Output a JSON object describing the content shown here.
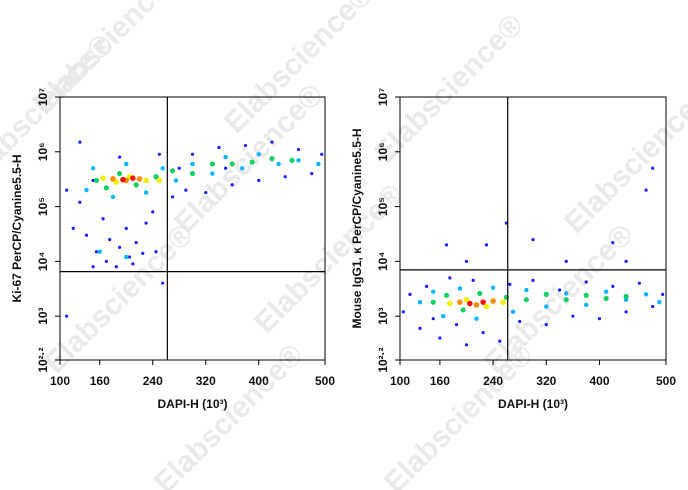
{
  "watermark": "Elabscience®",
  "chart_data": [
    {
      "type": "scatter",
      "xlabel": "DAPI-H  (10³)",
      "ylabel": "Ki-67 PerCP/Cyanine5.5-H",
      "xlim": [
        100,
        500
      ],
      "xticks": [
        100,
        160,
        240,
        320,
        400,
        500
      ],
      "ylim": [
        158.489,
        10000000.0
      ],
      "yscale": "log",
      "yticks": [
        {
          "value": 158.489,
          "label": "10²·²"
        },
        {
          "value": 1000,
          "label": "10³"
        },
        {
          "value": 10000,
          "label": "10⁴"
        },
        {
          "value": 100000,
          "label": "10⁵"
        },
        {
          "value": 1000000,
          "label": "10⁶"
        },
        {
          "value": 10000000,
          "label": "10⁷"
        }
      ],
      "gate": {
        "x": 262,
        "y": 6500
      },
      "series": [
        {
          "color": "#1a1aff",
          "x": [
            110,
            120,
            130,
            140,
            150,
            155,
            165,
            170,
            175,
            185,
            190,
            200,
            205,
            210,
            215,
            225,
            230,
            240,
            245,
            255,
            270,
            290,
            300,
            320,
            340,
            360,
            380,
            400,
            420,
            440,
            460,
            480,
            495,
            130,
            190,
            250,
            110,
            150,
            280,
            350
          ],
          "values": [
            200000.0,
            40000.0,
            120000.0,
            30000.0,
            8000.0,
            15000.0,
            60000.0,
            10000.0,
            25000.0,
            8000.0,
            18000.0,
            40000.0,
            12000.0,
            9000.0,
            22000.0,
            14000.0,
            50000.0,
            80000.0,
            15000.0,
            4000.0,
            150000.0,
            200000.0,
            900000.0,
            180000.0,
            1200000.0,
            250000.0,
            1300000.0,
            300000.0,
            1500000.0,
            350000.0,
            1100000.0,
            400000.0,
            900000.0,
            1500000.0,
            800000.0,
            900000.0,
            1000.0,
            300000.0,
            500000.0,
            500000.0
          ]
        },
        {
          "color": "#00b4ff",
          "x": [
            140,
            150,
            180,
            200,
            230,
            255,
            275,
            300,
            330,
            350,
            375,
            400,
            430,
            460,
            490,
            160,
            200
          ],
          "values": [
            200000.0,
            500000.0,
            150000.0,
            600000.0,
            180000.0,
            500000.0,
            300000.0,
            600000.0,
            400000.0,
            800000.0,
            500000.0,
            900000.0,
            600000.0,
            700000.0,
            600000.0,
            15000.0,
            12000.0
          ]
        },
        {
          "color": "#10d060",
          "x": [
            155,
            170,
            190,
            215,
            245,
            270,
            300,
            330,
            360,
            390,
            420,
            450
          ],
          "values": [
            300000.0,
            220000.0,
            400000.0,
            250000.0,
            350000.0,
            450000.0,
            400000.0,
            600000.0,
            600000.0,
            650000.0,
            750000.0,
            700000.0
          ]
        },
        {
          "color": "#f0f000",
          "x": [
            165,
            185,
            205,
            230,
            250
          ],
          "values": [
            330000.0,
            280000.0,
            350000.0,
            300000.0,
            300000.0
          ]
        },
        {
          "color": "#ff8c00",
          "x": [
            180,
            200,
            220
          ],
          "values": [
            320000.0,
            300000.0,
            320000.0
          ]
        },
        {
          "color": "#ff1010",
          "x": [
            195,
            210
          ],
          "values": [
            310000.0,
            330000.0
          ]
        }
      ]
    },
    {
      "type": "scatter",
      "xlabel": "DAPI-H  (10³)",
      "ylabel": "Mouse IgG1, κ PerCP/Cyanine5.5-H",
      "xlim": [
        100,
        500
      ],
      "xticks": [
        100,
        160,
        240,
        320,
        400,
        500
      ],
      "ylim": [
        158.489,
        10000000.0
      ],
      "yscale": "log",
      "yticks": [
        {
          "value": 158.489,
          "label": "10²·²"
        },
        {
          "value": 1000,
          "label": "10³"
        },
        {
          "value": 10000,
          "label": "10⁴"
        },
        {
          "value": 100000,
          "label": "10⁵"
        },
        {
          "value": 1000000,
          "label": "10⁶"
        },
        {
          "value": 10000000,
          "label": "10⁷"
        }
      ],
      "gate": {
        "x": 262,
        "y": 7000
      },
      "series": [
        {
          "color": "#1a1aff",
          "x": [
            105,
            115,
            130,
            140,
            150,
            160,
            175,
            185,
            200,
            210,
            225,
            240,
            250,
            265,
            280,
            300,
            320,
            340,
            360,
            380,
            400,
            420,
            440,
            460,
            480,
            495,
            230,
            300,
            420,
            470,
            480,
            200,
            260,
            350,
            440,
            170
          ],
          "values": [
            1200,
            2500,
            600,
            3500,
            900,
            400,
            5000,
            700,
            300,
            4500,
            500,
            1800,
            350,
            3800,
            800,
            4500,
            700,
            3000,
            1000,
            4200,
            900,
            3500,
            1200,
            4000,
            1500,
            2500,
            20000.0,
            25000.0,
            22000.0,
            200000.0,
            500000.0,
            10000.0,
            50000.0,
            10000.0,
            10000.0,
            20000.0
          ]
        },
        {
          "color": "#00b4ff",
          "x": [
            130,
            150,
            165,
            190,
            215,
            240,
            270,
            290,
            320,
            350,
            380,
            410,
            440,
            470,
            490
          ],
          "values": [
            1800,
            2800,
            1000,
            3200,
            900,
            3300,
            1200,
            3000,
            1500,
            2600,
            1600,
            2800,
            2000,
            2500,
            1800
          ]
        },
        {
          "color": "#10d060",
          "x": [
            150,
            170,
            195,
            220,
            260,
            290,
            320,
            350,
            380,
            410,
            440
          ],
          "values": [
            1800,
            2400,
            1300,
            2600,
            2200,
            2000,
            2500,
            2000,
            2400,
            2100,
            2300
          ]
        },
        {
          "color": "#f0f000",
          "x": [
            175,
            200,
            230,
            255
          ],
          "values": [
            1700,
            2000,
            1500,
            1800
          ]
        },
        {
          "color": "#ff8c00",
          "x": [
            190,
            215,
            240
          ],
          "values": [
            1800,
            1600,
            1900
          ]
        },
        {
          "color": "#ff1010",
          "x": [
            205,
            225
          ],
          "values": [
            1700,
            1800
          ]
        }
      ]
    }
  ]
}
